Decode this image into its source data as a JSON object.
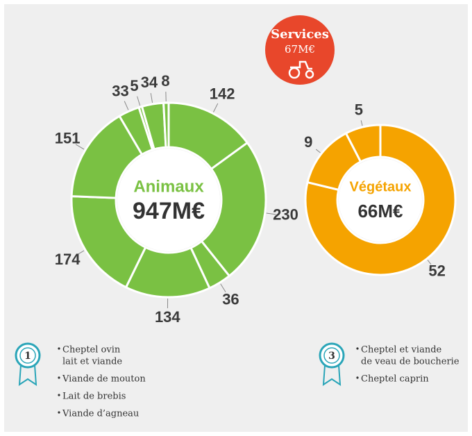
{
  "chart_data": [
    {
      "type": "donut",
      "center_label": "Animaux",
      "total_label": "947M€",
      "values": [
        142,
        230,
        36,
        134,
        174,
        151,
        33,
        5,
        34,
        8
      ],
      "color": "#7ac143"
    },
    {
      "type": "donut",
      "center_label": "Végétaux",
      "total_label": "66M€",
      "values": [
        52,
        9,
        5
      ],
      "color": "#f5a300"
    }
  ],
  "services": {
    "title": "Services",
    "value": "67M€"
  },
  "rankings": [
    {
      "rank": "1",
      "items": [
        [
          "Cheptel ovin",
          "lait et viande"
        ],
        [
          "Viande de mouton"
        ],
        [
          "Lait de brebis"
        ],
        [
          "Viande d’agneau"
        ]
      ]
    },
    {
      "rank": "3",
      "items": [
        [
          "Cheptel et viande",
          "de veau de boucherie"
        ],
        [
          "Cheptel caprin"
        ]
      ]
    }
  ]
}
